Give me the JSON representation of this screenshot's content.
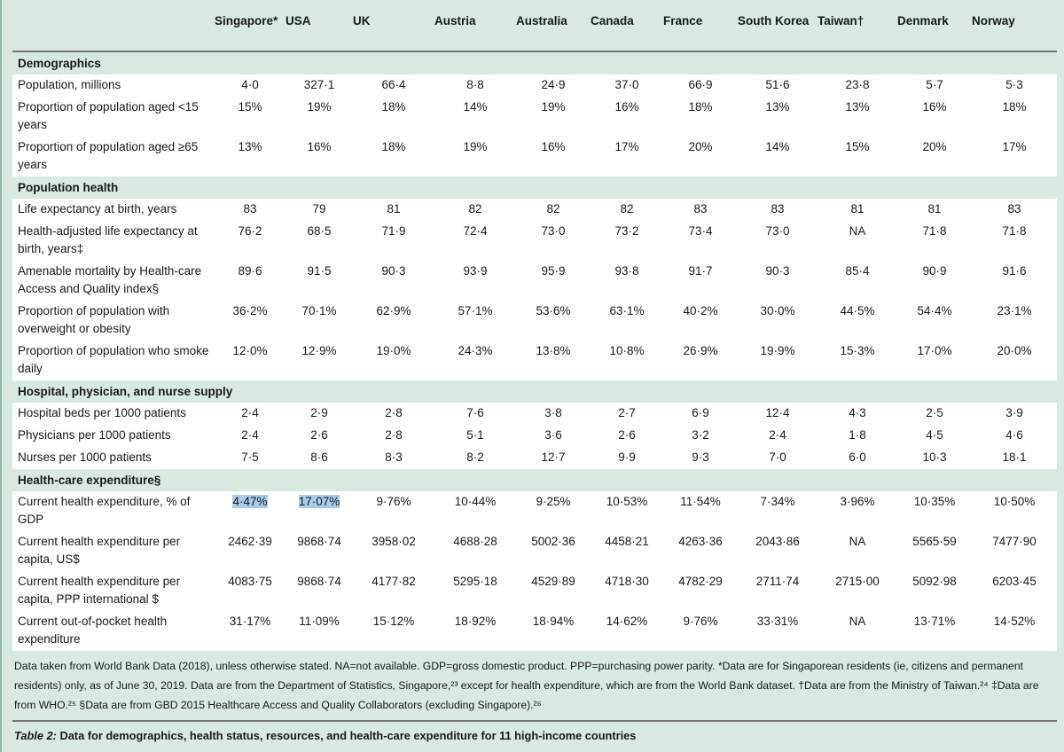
{
  "columns": [
    "Singapore*",
    "USA",
    "UK",
    "Austria",
    "Australia",
    "Canada",
    "France",
    "South Korea",
    "Taiwan†",
    "Denmark",
    "Norway"
  ],
  "sections": [
    {
      "title": "Demographics",
      "rows": [
        {
          "label": "Population, millions",
          "values": [
            "4·0",
            "327·1",
            "66·4",
            "8·8",
            "24·9",
            "37·0",
            "66·9",
            "51·6",
            "23·8",
            "5·7",
            "5·3"
          ]
        },
        {
          "label": "Proportion of population aged <15 years",
          "values": [
            "15%",
            "19%",
            "18%",
            "14%",
            "19%",
            "16%",
            "18%",
            "13%",
            "13%",
            "16%",
            "18%"
          ]
        },
        {
          "label": "Proportion of population aged ≥65 years",
          "values": [
            "13%",
            "16%",
            "18%",
            "19%",
            "16%",
            "17%",
            "20%",
            "14%",
            "15%",
            "20%",
            "17%"
          ]
        }
      ]
    },
    {
      "title": "Population health",
      "rows": [
        {
          "label": "Life expectancy at birth, years",
          "values": [
            "83",
            "79",
            "81",
            "82",
            "82",
            "82",
            "83",
            "83",
            "81",
            "81",
            "83"
          ]
        },
        {
          "label": "Health-adjusted life expectancy at birth, years‡",
          "values": [
            "76·2",
            "68·5",
            "71·9",
            "72·4",
            "73·0",
            "73·2",
            "73·4",
            "73·0",
            "NA",
            "71·8",
            "71·8"
          ]
        },
        {
          "label": "Amenable mortality by Health-care Access and Quality index§",
          "values": [
            "89·6",
            "91·5",
            "90·3",
            "93·9",
            "95·9",
            "93·8",
            "91·7",
            "90·3",
            "85·4",
            "90·9",
            "91·6"
          ]
        },
        {
          "label": "Proportion of population with overweight or obesity",
          "values": [
            "36·2%",
            "70·1%",
            "62·9%",
            "57·1%",
            "53·6%",
            "63·1%",
            "40·2%",
            "30·0%",
            "44·5%",
            "54·4%",
            "23·1%"
          ]
        },
        {
          "label": "Proportion of population who smoke daily",
          "values": [
            "12·0%",
            "12·9%",
            "19·0%",
            "24·3%",
            "13·8%",
            "10·8%",
            "26·9%",
            "19·9%",
            "15·3%",
            "17·0%",
            "20·0%"
          ]
        }
      ]
    },
    {
      "title": "Hospital, physician, and nurse supply",
      "rows": [
        {
          "label": "Hospital beds per 1000 patients",
          "values": [
            "2·4",
            "2·9",
            "2·8",
            "7·6",
            "3·8",
            "2·7",
            "6·9",
            "12·4",
            "4·3",
            "2·5",
            "3·9"
          ]
        },
        {
          "label": "Physicians per 1000 patients",
          "values": [
            "2·4",
            "2·6",
            "2·8",
            "5·1",
            "3·6",
            "2·6",
            "3·2",
            "2·4",
            "1·8",
            "4·5",
            "4·6"
          ]
        },
        {
          "label": "Nurses per 1000 patients",
          "values": [
            "7·5",
            "8·6",
            "8·3",
            "8·2",
            "12·7",
            "9·9",
            "9·3",
            "7·0",
            "6·0",
            "10·3",
            "18·1"
          ]
        }
      ]
    },
    {
      "title": "Health-care expenditure§",
      "rows": [
        {
          "label": "Current health expenditure, % of GDP",
          "values": [
            "4·47%",
            "17·07%",
            "9·76%",
            "10·44%",
            "9·25%",
            "10·53%",
            "11·54%",
            "7·34%",
            "3·96%",
            "10·35%",
            "10·50%"
          ]
        },
        {
          "label": "Current health expenditure per capita, US$",
          "values": [
            "2462·39",
            "9868·74",
            "3958·02",
            "4688·28",
            "5002·36",
            "4458·21",
            "4263·36",
            "2043·86",
            "NA",
            "5565·59",
            "7477·90"
          ]
        },
        {
          "label": "Current health expenditure per capita, PPP international $",
          "values": [
            "4083·75",
            "9868·74",
            "4177·82",
            "5295·18",
            "4529·89",
            "4718·30",
            "4782·29",
            "2711·74",
            "2715·00",
            "5092·98",
            "6203·45"
          ]
        },
        {
          "label": "Current out-of-pocket health expenditure",
          "values": [
            "31·17%",
            "11·09%",
            "15·12%",
            "18·92%",
            "18·94%",
            "14·62%",
            "9·76%",
            "33·31%",
            "NA",
            "13·71%",
            "14·52%"
          ]
        }
      ]
    }
  ],
  "highlighted_cells": [
    "4·47%",
    "17·07%"
  ],
  "colors": {
    "background": "#d8e9e0",
    "row_background": "#ffffff",
    "highlight": "#a9cde8"
  },
  "footnote": "Data taken from World Bank Data (2018), unless otherwise stated. NA=not available. GDP=gross domestic product. PPP=purchasing power parity. *Data are for Singaporean residents (ie, citizens and permanent residents) only, as of June 30, 2019. Data are from the Department of Statistics, Singapore,²³ except for health expenditure, which are from the World Bank dataset. †Data are from the Ministry of Taiwan.²⁴ ‡Data are from WHO.²⁵ §Data are from GBD 2015 Healthcare Access and Quality Collaborators (excluding Singapore).²⁶",
  "caption": {
    "label": "Table 2:",
    "text": " Data for demographics, health status, resources, and health-care expenditure for 11 high-income countries"
  }
}
